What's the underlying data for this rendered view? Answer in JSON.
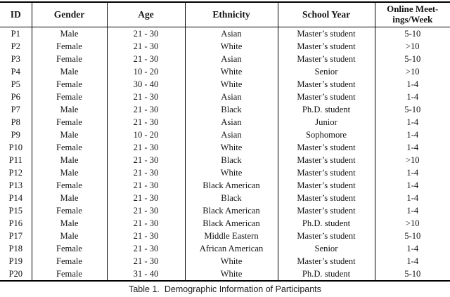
{
  "table": {
    "columns": [
      "ID",
      "Gender",
      "Age",
      "Ethnicity",
      "School Year",
      "Online Meet-\nings/Week"
    ],
    "fields": [
      "id",
      "gender",
      "age",
      "ethnicity",
      "school_year",
      "meetings_per_week"
    ],
    "rows": [
      {
        "id": "P1",
        "gender": "Male",
        "age": "21 - 30",
        "ethnicity": "Asian",
        "school_year": "Master’s student",
        "meetings_per_week": "5-10"
      },
      {
        "id": "P2",
        "gender": "Female",
        "age": "21 - 30",
        "ethnicity": "White",
        "school_year": "Master’s student",
        "meetings_per_week": ">10"
      },
      {
        "id": "P3",
        "gender": "Female",
        "age": "21 - 30",
        "ethnicity": "Asian",
        "school_year": "Master’s student",
        "meetings_per_week": "5-10"
      },
      {
        "id": "P4",
        "gender": "Male",
        "age": "10 - 20",
        "ethnicity": "White",
        "school_year": "Senior",
        "meetings_per_week": ">10"
      },
      {
        "id": "P5",
        "gender": "Female",
        "age": "30 - 40",
        "ethnicity": "White",
        "school_year": "Master’s student",
        "meetings_per_week": "1-4"
      },
      {
        "id": "P6",
        "gender": "Female",
        "age": "21 - 30",
        "ethnicity": "Asian",
        "school_year": "Master’s student",
        "meetings_per_week": "1-4"
      },
      {
        "id": "P7",
        "gender": "Male",
        "age": "21 - 30",
        "ethnicity": "Black",
        "school_year": "Ph.D. student",
        "meetings_per_week": "5-10"
      },
      {
        "id": "P8",
        "gender": "Female",
        "age": "21 - 30",
        "ethnicity": "Asian",
        "school_year": "Junior",
        "meetings_per_week": "1-4"
      },
      {
        "id": "P9",
        "gender": "Male",
        "age": "10 - 20",
        "ethnicity": "Asian",
        "school_year": "Sophomore",
        "meetings_per_week": "1-4"
      },
      {
        "id": "P10",
        "gender": "Female",
        "age": "21 - 30",
        "ethnicity": "White",
        "school_year": "Master’s student",
        "meetings_per_week": "1-4"
      },
      {
        "id": "P11",
        "gender": "Male",
        "age": "21 - 30",
        "ethnicity": "Black",
        "school_year": "Master’s student",
        "meetings_per_week": ">10"
      },
      {
        "id": "P12",
        "gender": "Male",
        "age": "21 - 30",
        "ethnicity": "White",
        "school_year": "Master’s student",
        "meetings_per_week": "1-4"
      },
      {
        "id": "P13",
        "gender": "Female",
        "age": "21 - 30",
        "ethnicity": "Black American",
        "school_year": "Master’s student",
        "meetings_per_week": "1-4"
      },
      {
        "id": "P14",
        "gender": "Male",
        "age": "21 - 30",
        "ethnicity": "Black",
        "school_year": "Master’s student",
        "meetings_per_week": "1-4"
      },
      {
        "id": "P15",
        "gender": "Female",
        "age": "21 - 30",
        "ethnicity": "Black American",
        "school_year": "Master’s student",
        "meetings_per_week": "1-4"
      },
      {
        "id": "P16",
        "gender": "Male",
        "age": "21 - 30",
        "ethnicity": "Black American",
        "school_year": "Ph.D. student",
        "meetings_per_week": ">10"
      },
      {
        "id": "P17",
        "gender": "Male",
        "age": "21 - 30",
        "ethnicity": "Middle Eastern",
        "school_year": "Master’s student",
        "meetings_per_week": "5-10"
      },
      {
        "id": "P18",
        "gender": "Female",
        "age": "21 - 30",
        "ethnicity": "African American",
        "school_year": "Senior",
        "meetings_per_week": "1-4"
      },
      {
        "id": "P19",
        "gender": "Female",
        "age": "21 - 30",
        "ethnicity": "White",
        "school_year": "Master’s student",
        "meetings_per_week": "1-4"
      },
      {
        "id": "P20",
        "gender": "Female",
        "age": "31 - 40",
        "ethnicity": "White",
        "school_year": "Ph.D. student",
        "meetings_per_week": "5-10"
      }
    ]
  },
  "caption": {
    "label": "Table 1.",
    "text": "Demographic Information of Participants"
  }
}
